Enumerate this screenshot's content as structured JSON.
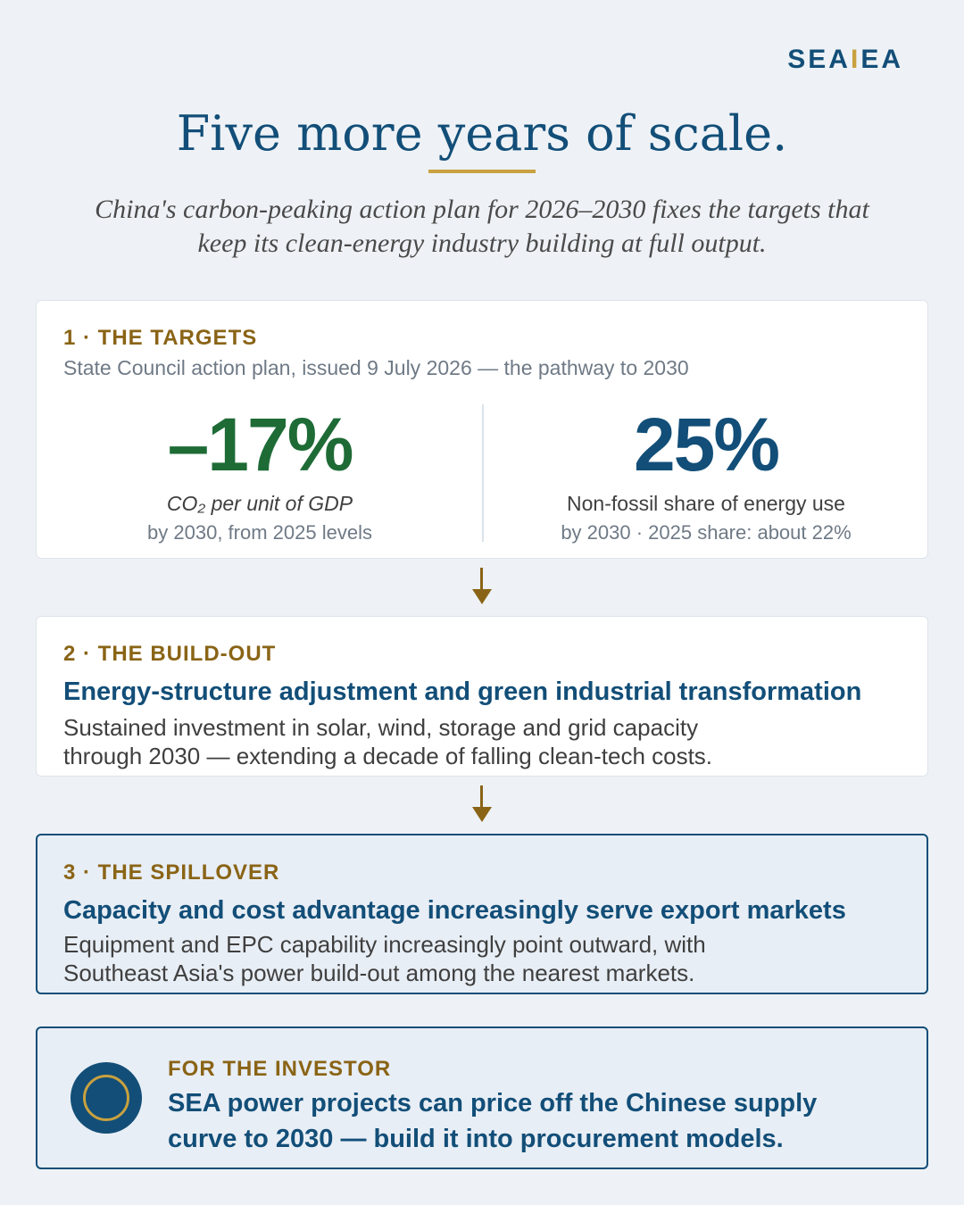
{
  "logo": {
    "left": "SEA",
    "sep": "I",
    "right": "EA"
  },
  "title": "Five more years of scale.",
  "subtitle_line1": "China's carbon-peaking action plan for 2026–2030 fixes the targets that",
  "subtitle_line2": "keep its clean-energy industry building at full output.",
  "colors": {
    "navy": "#124e78",
    "gold": "#c9a13f",
    "green": "#1e6b36",
    "brown": "#8a6416"
  },
  "targets": {
    "eyebrow": "1 · THE TARGETS",
    "source": "State Council action plan, issued 9 July 2026 — the pathway to 2030",
    "stat_left": {
      "value": "–17%",
      "label": "CO₂ per unit of GDP",
      "note": "by 2030, from 2025 levels"
    },
    "stat_right": {
      "value": "25%",
      "label": "Non-fossil share of energy use",
      "note": "by 2030 · 2025 share: about 22%"
    }
  },
  "buildout": {
    "eyebrow": "2 · THE BUILD-OUT",
    "headline": "Energy-structure adjustment and green industrial transformation",
    "body_line1": "Sustained investment in solar, wind, storage and grid capacity",
    "body_line2": "through 2030 — extending a decade of falling clean-tech costs."
  },
  "spillover": {
    "eyebrow": "3 · THE SPILLOVER",
    "headline": "Capacity and cost advantage increasingly serve export markets",
    "body_line1": "Equipment and EPC capability increasingly point outward, with",
    "body_line2": "Southeast Asia's power build-out among the nearest markets."
  },
  "investor": {
    "eyebrow": "FOR THE INVESTOR",
    "line1": "SEA power projects can price off the Chinese supply",
    "line2": "curve to 2030 — build it into procurement models."
  }
}
